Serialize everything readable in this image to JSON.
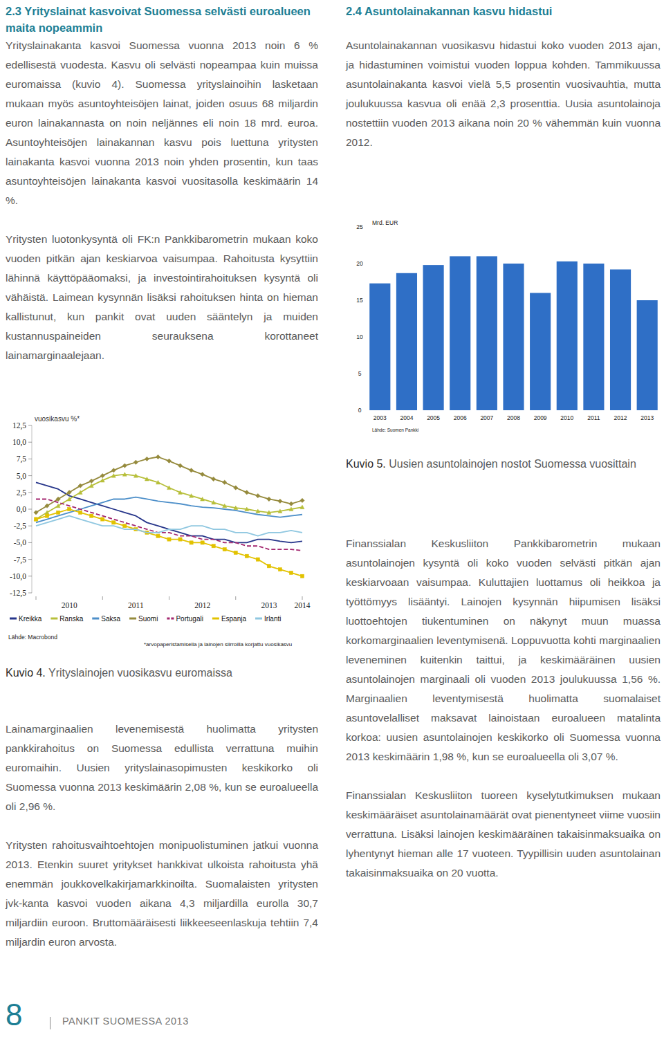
{
  "blocks": [
    {
      "heading": "2.3 Yrityslainat kasvoivat Suomessa selvästi euroalueen maita nopeammin",
      "paragraphs": [
        "Yrityslainakanta kasvoi Suomessa vuonna 2013 noin 6 % edellisestä vuodesta. Kasvu oli selvästi nopeampaa kuin muissa euromaissa (kuvio 4). Suomessa yrityslainoihin lasketaan mukaan myös asuntoyhteisöjen lainat, joiden osuus 68 miljardin euron lainakannasta on noin neljännes eli noin 18 mrd. euroa. Asuntoyhteisöjen lainakannan kasvu pois luettuna yritysten lainakanta kasvoi vuonna 2013 noin yhden prosentin, kun taas asuntoyhteisöjen lainakanta kasvoi vuositasolla keskimäärin 14 %.",
        "Yritysten luotonkysyntä oli FK:n Pankkibarometrin mukaan koko vuoden pitkän ajan keskiarvoa vaisumpaa. Rahoitusta kysyttiin lähinnä käyttöpääomaksi, ja investointirahoituksen kysyntä oli vähäistä. Laimean kysynnän lisäksi rahoituksen hinta on hieman kallistunut, kun pankit ovat uuden sääntelyn ja muiden kustannuspaineiden seurauksena korottaneet lainamarginaalejaan."
      ]
    },
    {
      "paragraphs": [
        "Lainamarginaalien levenemisestä huolimatta yritysten pankkirahoitus on Suomessa edullista verrattuna muihin euromaihin. Uusien yrityslainasopimusten keskikorko oli Suomessa vuonna 2013 keskimäärin 2,08 %, kun se euroalueella oli 2,96 %.",
        "Yritysten rahoitusvaihtoehtojen monipuolistuminen jatkui vuonna 2013. Etenkin suuret yritykset hankkivat ulkoista rahoitusta yhä enemmän joukkovelkakirjamarkkinoilta. Suomalaisten yritysten jvk-kanta kasvoi vuoden aikana 4,3 miljardilla eurolla 30,7 miljardiin euroon. Bruttomääräisesti liikkeeseenlaskuja tehtiin 7,4 miljardin euron arvosta."
      ]
    },
    {
      "heading": "2.4 Asuntolainakannan kasvu hidastui",
      "paragraphs": [
        "Asuntolainakannan vuosikasvu hidastui koko vuoden 2013 ajan, ja hidastuminen voimistui vuoden loppua kohden. Tammikuussa asuntolainakanta kasvoi vielä 5,5 prosentin vuosivauhtia, mutta joulukuussa kasvua oli enää 2,3 prosenttia. Uusia asuntolainoja nostettiin vuoden 2013 aikana noin 20 % vähemmän kuin vuonna 2012."
      ]
    },
    {
      "paragraphs": [
        "Finanssialan Keskusliiton Pankkibarometrin mukaan asuntolainojen kysyntä oli koko vuoden selvästi pitkän ajan keskiarvoaan vaisumpaa. Kuluttajien luottamus oli heikkoa ja työttömyys lisääntyi. Lainojen kysynnän hiipumisen lisäksi luottoehtojen tiukentuminen on näkynyt muun muassa korkomarginaalien leventymisenä. Loppuvuotta kohti marginaalien leveneminen kuitenkin taittui, ja keskimääräinen uusien asuntolainojen marginaali oli vuoden 2013 joulukuussa 1,56 %. Marginaalien leventymisestä huolimatta suomalaiset asuntovelalliset maksavat lainoistaan euroalueen matalinta korkoa: uusien asuntolainojen keskikorko oli Suomessa vuonna 2013 keskimäärin 1,98 %, kun se euroalueella oli 3,07 %.",
        "Finanssialan Keskusliiton tuoreen kyselytutkimuksen mukaan keskimääräiset asuntolainamäärät ovat pienentyneet viime vuosiin verrattuna. Lisäksi lainojen keskimääräinen takaisinmaksuaika on lyhentynyt hieman alle 17 vuoteen. Tyypillisin uuden asuntolainan takaisinmaksuaika on 20 vuotta."
      ]
    }
  ],
  "captions": [
    {
      "number": "Kuvio 4.",
      "text": "Yrityslainojen vuosikasvu euromaissa"
    },
    {
      "number": "Kuvio 5.",
      "text": "Uusien asuntolainojen nostot Suomessa vuosittain"
    }
  ],
  "footer": {
    "page_number": "8",
    "publication": "PANKIT SUOMESSA 2013"
  },
  "chart_data": [
    {
      "type": "line",
      "title": "vuosikasvu %*",
      "categories": [
        null,
        null,
        null,
        "2010",
        null,
        null,
        null,
        null,
        null,
        "2011",
        null,
        null,
        null,
        null,
        null,
        "2012",
        null,
        null,
        null,
        null,
        null,
        "2013",
        null,
        null,
        "2014"
      ],
      "ylim": [
        -12.5,
        12.5
      ],
      "yticks": [
        {
          "value": 12.5,
          "label": "12,5"
        },
        {
          "value": 10,
          "label": "10,0"
        },
        {
          "value": 7.5,
          "label": "7,5"
        },
        {
          "value": 5,
          "label": "5,0"
        },
        {
          "value": 2.5,
          "label": "2,5"
        },
        {
          "value": 0,
          "label": "0,0"
        },
        {
          "value": -2.5,
          "label": "-2,5"
        },
        {
          "value": -5,
          "label": "-5,0"
        },
        {
          "value": -7.5,
          "label": "-7,5"
        },
        {
          "value": -10,
          "label": "-10,0"
        },
        {
          "value": -12.5,
          "label": "-12,5"
        }
      ],
      "grid": false,
      "legend": "bottom",
      "source": "Lähde: Macrobond",
      "note": "*arvopaperistamisella ja lainojen siirroilla korjattu vuosikasvu",
      "series": [
        {
          "name": "Kreikka",
          "color": "#26358a",
          "marker": "none",
          "line_style": "solid",
          "values": [
            4.0,
            3.5,
            3.0,
            2.0,
            1.5,
            1.0,
            0.5,
            0.0,
            -0.5,
            -1.0,
            -2.0,
            -2.5,
            -3.0,
            -3.5,
            -4.0,
            -4.0,
            -4.5,
            -4.5,
            -5.0,
            -5.0,
            -4.5,
            -4.5,
            -4.8,
            -5.0,
            -4.8
          ]
        },
        {
          "name": "Ranska",
          "color": "#b7bf3a",
          "marker": "triangle",
          "line_style": "solid",
          "values": [
            -1.5,
            -0.5,
            0.5,
            1.5,
            2.5,
            3.5,
            4.3,
            5.0,
            5.2,
            5.0,
            4.5,
            4.0,
            3.2,
            2.5,
            2.0,
            1.5,
            1.0,
            0.5,
            0.2,
            0.0,
            -0.3,
            -0.5,
            -0.3,
            0.0,
            0.3
          ]
        },
        {
          "name": "Saksa",
          "color": "#4d8fc9",
          "marker": "none",
          "line_style": "solid",
          "values": [
            -2.0,
            -1.5,
            -1.0,
            -0.5,
            0.0,
            0.5,
            1.0,
            1.5,
            1.5,
            1.8,
            1.5,
            1.2,
            1.0,
            0.8,
            0.5,
            0.3,
            0.2,
            0.0,
            -0.2,
            -0.5,
            -0.8,
            -1.0,
            -1.2,
            -1.0,
            -0.8
          ]
        },
        {
          "name": "Suomi",
          "color": "#958a3c",
          "marker": "diamond",
          "line_style": "solid",
          "values": [
            -0.5,
            0.5,
            1.5,
            2.5,
            3.5,
            4.2,
            5.0,
            5.8,
            6.5,
            7.0,
            7.5,
            7.8,
            7.2,
            6.5,
            5.8,
            5.2,
            4.5,
            4.0,
            3.2,
            2.5,
            2.0,
            1.5,
            1.2,
            0.8,
            1.3
          ]
        },
        {
          "name": "Portugali",
          "color": "#a3276f",
          "marker": "none",
          "line_style": "dashed",
          "values": [
            1.5,
            1.5,
            1.0,
            0.5,
            0.0,
            -0.5,
            -1.0,
            -1.5,
            -2.0,
            -2.5,
            -3.0,
            -3.5,
            -3.5,
            -4.0,
            -4.0,
            -4.5,
            -4.5,
            -5.0,
            -5.0,
            -5.5,
            -5.5,
            -6.0,
            -6.0,
            -6.0,
            -6.2
          ]
        },
        {
          "name": "Espanja",
          "color": "#e2c200",
          "marker": "square",
          "line_style": "solid",
          "values": [
            -1.5,
            -1.0,
            -0.5,
            0.0,
            -0.5,
            -1.0,
            -1.5,
            -2.0,
            -2.5,
            -3.0,
            -3.5,
            -4.0,
            -4.5,
            -4.5,
            -5.0,
            -5.0,
            -5.5,
            -6.0,
            -6.5,
            -7.0,
            -7.5,
            -8.5,
            -9.0,
            -9.5,
            -10.0
          ]
        },
        {
          "name": "Irlanti",
          "color": "#8fc7e0",
          "marker": "none",
          "line_style": "solid",
          "values": [
            -2.5,
            -2.0,
            -1.5,
            -1.0,
            -1.5,
            -2.0,
            -2.5,
            -2.5,
            -3.0,
            -3.0,
            -3.5,
            -3.5,
            -3.0,
            -3.0,
            -2.5,
            -2.5,
            -3.0,
            -3.0,
            -3.5,
            -3.5,
            -4.0,
            -3.5,
            -3.5,
            -3.2,
            -3.5
          ]
        }
      ]
    },
    {
      "type": "bar",
      "y_label": "Mrd. EUR",
      "categories": [
        "2003",
        "2004",
        "2005",
        "2006",
        "2007",
        "2008",
        "2009",
        "2010",
        "2011",
        "2012",
        "2013"
      ],
      "values": [
        17.3,
        18.7,
        19.8,
        21.0,
        21.0,
        20.0,
        16.0,
        20.3,
        20.0,
        19.2,
        15.0
      ],
      "color": "#2f6fc6",
      "ylim": [
        0,
        25
      ],
      "yticks": [
        0,
        5,
        10,
        15,
        20,
        25
      ],
      "grid": false,
      "source": "Lähde: Suomen Pankki"
    }
  ]
}
